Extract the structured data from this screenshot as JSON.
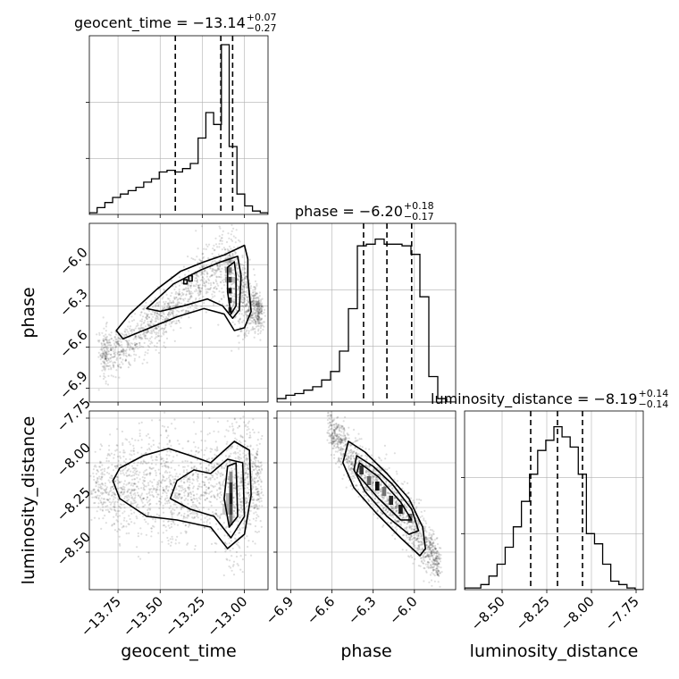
{
  "chart_data": {
    "type": "corner",
    "parameters": [
      {
        "name": "geocent_time",
        "label": "geocent_time",
        "title_main": "geocent_time = −13.14",
        "title_sup": "+0.07",
        "title_sub": "−0.27",
        "range": [
          -13.92,
          -12.86
        ],
        "ticks": [
          -13.75,
          -13.5,
          -13.25,
          -13.0
        ],
        "tick_labels": [
          "−13.75",
          "−13.50",
          "−13.25",
          "−13.00"
        ],
        "quantiles": [
          -13.41,
          -13.14,
          -13.07
        ],
        "hist_max": 1.0,
        "hist": [
          0.01,
          0.04,
          0.07,
          0.1,
          0.12,
          0.14,
          0.16,
          0.19,
          0.21,
          0.25,
          0.26,
          0.25,
          0.27,
          0.3,
          0.45,
          0.6,
          0.53,
          1.0,
          0.4,
          0.12,
          0.05,
          0.02,
          0.01
        ]
      },
      {
        "name": "phase",
        "label": "phase",
        "title_main": "phase = −6.20",
        "title_sup": "+0.18",
        "title_sub": "−0.17",
        "range": [
          -7.0,
          -5.7
        ],
        "ticks": [
          -6.9,
          -6.6,
          -6.3,
          -6.0
        ],
        "tick_labels": [
          "−6.9",
          "−6.6",
          "−6.3",
          "−6.0"
        ],
        "quantiles": [
          -6.37,
          -6.2,
          -6.02
        ],
        "hist_max": 1.0,
        "hist": [
          0.02,
          0.04,
          0.05,
          0.07,
          0.09,
          0.13,
          0.18,
          0.3,
          0.55,
          0.92,
          0.93,
          0.96,
          0.93,
          0.93,
          0.92,
          0.87,
          0.62,
          0.15,
          0.02,
          0.0
        ]
      },
      {
        "name": "luminosity_distance",
        "label": "luminosity_distance",
        "title_main": "luminosity_distance = −8.19",
        "title_sup": "+0.14",
        "title_sub": "−0.14",
        "range": [
          -8.71,
          -7.71
        ],
        "ticks": [
          -8.5,
          -8.25,
          -8.0,
          -7.75
        ],
        "tick_labels": [
          "−8.50",
          "−8.25",
          "−8.00",
          "−7.75"
        ],
        "quantiles": [
          -8.34,
          -8.19,
          -8.05
        ],
        "hist_max": 1.0,
        "hist": [
          0.01,
          0.01,
          0.03,
          0.08,
          0.15,
          0.25,
          0.37,
          0.52,
          0.68,
          0.82,
          0.88,
          0.96,
          0.9,
          0.84,
          0.68,
          0.33,
          0.27,
          0.15,
          0.05,
          0.03,
          0.01,
          0.0
        ]
      }
    ],
    "pairs": [
      {
        "x": "geocent_time",
        "y": "phase",
        "samples": {
          "x": [
            -13.85,
            -13.8,
            -13.72,
            -13.6,
            -13.5,
            -13.4,
            -13.3,
            -13.2,
            -13.1,
            -13.06,
            -13.02,
            -12.98,
            -12.93,
            -12.9
          ],
          "y_center": [
            -6.67,
            -6.63,
            -6.6,
            -6.5,
            -6.4,
            -6.28,
            -6.16,
            -6.06,
            -6.0,
            -6.12,
            -6.2,
            -6.3,
            -6.32,
            -6.35
          ],
          "y_spread": [
            0.1,
            0.09,
            0.08,
            0.09,
            0.09,
            0.09,
            0.1,
            0.12,
            0.15,
            0.18,
            0.15,
            0.1,
            0.08,
            0.06
          ],
          "count": 1900
        },
        "density_cells": [
          {
            "x": -13.085,
            "y": -6.33,
            "w": 0.02,
            "h": 0.04,
            "level": 0.85
          },
          {
            "x": -13.085,
            "y": -6.26,
            "w": 0.02,
            "h": 0.04,
            "level": 0.8
          },
          {
            "x": -13.085,
            "y": -6.19,
            "w": 0.02,
            "h": 0.04,
            "level": 0.95
          },
          {
            "x": -13.085,
            "y": -6.11,
            "w": 0.02,
            "h": 0.04,
            "level": 0.75
          },
          {
            "x": -13.085,
            "y": -6.04,
            "w": 0.02,
            "h": 0.04,
            "level": 0.55
          },
          {
            "x": -13.085,
            "y": -5.97,
            "w": 0.02,
            "h": 0.04,
            "level": 0.4
          },
          {
            "x": -13.105,
            "y": -6.11,
            "w": 0.02,
            "h": 0.04,
            "level": 0.3
          },
          {
            "x": -13.105,
            "y": -6.04,
            "w": 0.02,
            "h": 0.04,
            "level": 0.35
          },
          {
            "x": -13.105,
            "y": -5.97,
            "w": 0.02,
            "h": 0.04,
            "level": 0.25
          },
          {
            "x": -13.065,
            "y": -6.11,
            "w": 0.02,
            "h": 0.04,
            "level": 0.25
          }
        ],
        "contours": [
          [
            [
              -13.0,
              -5.86
            ],
            [
              -13.12,
              -5.93
            ],
            [
              -13.24,
              -5.98
            ],
            [
              -13.38,
              -6.05
            ],
            [
              -13.52,
              -6.18
            ],
            [
              -13.68,
              -6.36
            ],
            [
              -13.76,
              -6.48
            ],
            [
              -13.72,
              -6.54
            ],
            [
              -13.56,
              -6.46
            ],
            [
              -13.4,
              -6.38
            ],
            [
              -13.24,
              -6.32
            ],
            [
              -13.12,
              -6.36
            ],
            [
              -13.06,
              -6.48
            ],
            [
              -13.0,
              -6.46
            ],
            [
              -12.96,
              -6.34
            ],
            [
              -12.98,
              -6.1
            ],
            [
              -12.98,
              -5.96
            ]
          ],
          [
            [
              -13.04,
              -5.94
            ],
            [
              -13.14,
              -5.98
            ],
            [
              -13.26,
              -6.04
            ],
            [
              -13.42,
              -6.14
            ],
            [
              -13.58,
              -6.32
            ],
            [
              -13.5,
              -6.34
            ],
            [
              -13.36,
              -6.3
            ],
            [
              -13.22,
              -6.25
            ],
            [
              -13.13,
              -6.3
            ],
            [
              -13.07,
              -6.39
            ],
            [
              -13.03,
              -6.33
            ],
            [
              -13.02,
              -6.08
            ]
          ],
          [
            [
              -13.06,
              -5.98
            ],
            [
              -13.1,
              -6.02
            ],
            [
              -13.1,
              -6.2
            ],
            [
              -13.08,
              -6.36
            ],
            [
              -13.05,
              -6.3
            ],
            [
              -13.05,
              -6.08
            ]
          ],
          [
            [
              -13.33,
              -6.08
            ],
            [
              -13.31,
              -6.08
            ],
            [
              -13.31,
              -6.12
            ],
            [
              -13.33,
              -6.12
            ]
          ],
          [
            [
              -13.36,
              -6.11
            ],
            [
              -13.34,
              -6.11
            ],
            [
              -13.34,
              -6.14
            ],
            [
              -13.36,
              -6.14
            ]
          ]
        ]
      },
      {
        "x": "geocent_time",
        "y": "luminosity_distance",
        "samples": {
          "x": [
            -13.9,
            -13.8,
            -13.7,
            -13.6,
            -13.5,
            -13.4,
            -13.3,
            -13.2,
            -13.1,
            -13.05,
            -13.0,
            -12.95,
            -12.9
          ],
          "y_center": [
            -8.15,
            -8.14,
            -8.14,
            -8.12,
            -8.12,
            -8.15,
            -8.15,
            -8.14,
            -8.14,
            -8.18,
            -8.1,
            -8.1,
            -8.1
          ],
          "y_spread": [
            0.08,
            0.12,
            0.14,
            0.15,
            0.15,
            0.13,
            0.14,
            0.15,
            0.2,
            0.22,
            0.18,
            0.14,
            0.1
          ],
          "count": 1900
        },
        "density_cells": [
          {
            "x": -13.08,
            "y": -8.32,
            "w": 0.02,
            "h": 0.06,
            "level": 0.55
          },
          {
            "x": -13.08,
            "y": -8.26,
            "w": 0.02,
            "h": 0.06,
            "level": 0.75
          },
          {
            "x": -13.08,
            "y": -8.2,
            "w": 0.02,
            "h": 0.06,
            "level": 0.9
          },
          {
            "x": -13.08,
            "y": -8.14,
            "w": 0.02,
            "h": 0.06,
            "level": 0.8
          },
          {
            "x": -13.08,
            "y": -8.08,
            "w": 0.02,
            "h": 0.06,
            "level": 0.45
          },
          {
            "x": -13.1,
            "y": -8.26,
            "w": 0.02,
            "h": 0.06,
            "level": 0.35
          },
          {
            "x": -13.1,
            "y": -8.2,
            "w": 0.02,
            "h": 0.06,
            "level": 0.3
          },
          {
            "x": -13.12,
            "y": -8.26,
            "w": 0.02,
            "h": 0.06,
            "level": 0.2
          },
          {
            "x": -13.3,
            "y": -8.26,
            "w": 0.02,
            "h": 0.06,
            "level": 0.1
          }
        ],
        "contours": [
          [
            [
              -13.74,
              -8.03
            ],
            [
              -13.6,
              -7.96
            ],
            [
              -13.45,
              -7.92
            ],
            [
              -13.32,
              -7.96
            ],
            [
              -13.2,
              -8.0
            ],
            [
              -13.06,
              -7.88
            ],
            [
              -12.97,
              -7.93
            ],
            [
              -12.96,
              -8.18
            ],
            [
              -13.0,
              -8.4
            ],
            [
              -13.1,
              -8.48
            ],
            [
              -13.2,
              -8.36
            ],
            [
              -13.4,
              -8.32
            ],
            [
              -13.58,
              -8.3
            ],
            [
              -13.74,
              -8.2
            ],
            [
              -13.78,
              -8.1
            ]
          ],
          [
            [
              -13.3,
              -8.04
            ],
            [
              -13.2,
              -8.06
            ],
            [
              -13.1,
              -7.98
            ],
            [
              -13.01,
              -8.0
            ],
            [
              -13.0,
              -8.3
            ],
            [
              -13.08,
              -8.42
            ],
            [
              -13.18,
              -8.3
            ],
            [
              -13.32,
              -8.26
            ],
            [
              -13.44,
              -8.2
            ],
            [
              -13.4,
              -8.1
            ]
          ],
          [
            [
              -13.1,
              -8.02
            ],
            [
              -13.05,
              -8.0
            ],
            [
              -13.04,
              -8.3
            ],
            [
              -13.09,
              -8.36
            ],
            [
              -13.12,
              -8.2
            ]
          ]
        ]
      },
      {
        "x": "phase",
        "y": "luminosity_distance",
        "samples": {
          "x": [
            -6.62,
            -6.55,
            -6.48,
            -6.4,
            -6.32,
            -6.24,
            -6.16,
            -6.08,
            -6.0,
            -5.92,
            -5.86,
            -5.82
          ],
          "y_center": [
            -7.8,
            -7.88,
            -7.95,
            -8.03,
            -8.1,
            -8.16,
            -8.22,
            -8.3,
            -8.38,
            -8.46,
            -8.52,
            -8.57
          ],
          "y_spread": [
            0.06,
            0.07,
            0.07,
            0.07,
            0.07,
            0.08,
            0.08,
            0.08,
            0.08,
            0.07,
            0.06,
            0.05
          ],
          "count": 1600
        },
        "density_cells": [
          {
            "x": -6.385,
            "y": -8.04,
            "w": 0.03,
            "h": 0.05,
            "level": 0.8
          },
          {
            "x": -6.33,
            "y": -8.1,
            "w": 0.03,
            "h": 0.05,
            "level": 0.6
          },
          {
            "x": -6.27,
            "y": -8.13,
            "w": 0.03,
            "h": 0.05,
            "level": 0.95
          },
          {
            "x": -6.22,
            "y": -8.16,
            "w": 0.03,
            "h": 0.05,
            "level": 0.55
          },
          {
            "x": -6.17,
            "y": -8.21,
            "w": 0.03,
            "h": 0.05,
            "level": 0.85
          },
          {
            "x": -6.1,
            "y": -8.26,
            "w": 0.03,
            "h": 0.05,
            "level": 0.9
          },
          {
            "x": -6.03,
            "y": -8.31,
            "w": 0.03,
            "h": 0.05,
            "level": 0.6
          }
        ],
        "contours": [
          [
            [
              -6.48,
              -7.88
            ],
            [
              -6.36,
              -7.94
            ],
            [
              -6.2,
              -8.06
            ],
            [
              -6.04,
              -8.2
            ],
            [
              -5.94,
              -8.36
            ],
            [
              -5.92,
              -8.48
            ],
            [
              -5.96,
              -8.52
            ],
            [
              -6.1,
              -8.42
            ],
            [
              -6.28,
              -8.28
            ],
            [
              -6.44,
              -8.14
            ],
            [
              -6.52,
              -8.0
            ]
          ],
          [
            [
              -6.42,
              -7.96
            ],
            [
              -6.3,
              -8.02
            ],
            [
              -6.16,
              -8.12
            ],
            [
              -6.02,
              -8.26
            ],
            [
              -5.97,
              -8.38
            ],
            [
              -6.04,
              -8.4
            ],
            [
              -6.2,
              -8.3
            ],
            [
              -6.36,
              -8.16
            ],
            [
              -6.44,
              -8.04
            ]
          ],
          [
            [
              -6.4,
              -8.0
            ],
            [
              -6.26,
              -8.08
            ],
            [
              -6.1,
              -8.22
            ],
            [
              -6.02,
              -8.32
            ],
            [
              -6.1,
              -8.32
            ],
            [
              -6.26,
              -8.2
            ],
            [
              -6.42,
              -8.06
            ]
          ]
        ]
      }
    ]
  }
}
